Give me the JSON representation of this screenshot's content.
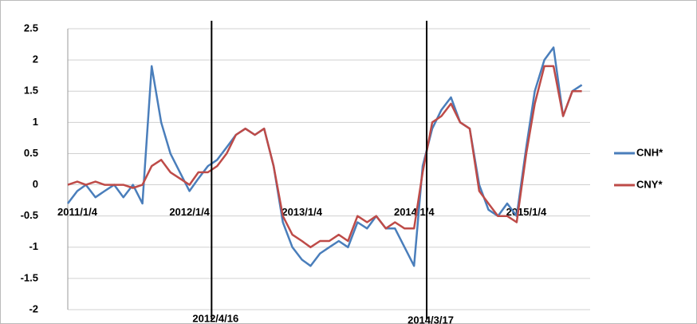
{
  "chart_data": {
    "type": "line",
    "x": [
      "2011/1/4",
      "2011/2/4",
      "2011/3/4",
      "2011/4/4",
      "2011/5/4",
      "2011/6/4",
      "2011/7/4",
      "2011/8/4",
      "2011/9/4",
      "2011/10/4",
      "2011/11/4",
      "2011/12/4",
      "2012/1/4",
      "2012/2/4",
      "2012/3/4",
      "2012/4/4",
      "2012/5/4",
      "2012/6/4",
      "2012/7/4",
      "2012/8/4",
      "2012/9/4",
      "2012/10/4",
      "2012/11/4",
      "2012/12/4",
      "2013/1/4",
      "2013/2/4",
      "2013/3/4",
      "2013/4/4",
      "2013/5/4",
      "2013/6/4",
      "2013/7/4",
      "2013/8/4",
      "2013/9/4",
      "2013/10/4",
      "2013/11/4",
      "2013/12/4",
      "2014/1/4",
      "2014/2/4",
      "2014/3/4",
      "2014/4/4",
      "2014/5/4",
      "2014/6/4",
      "2014/7/4",
      "2014/8/4",
      "2014/9/4",
      "2014/10/4",
      "2014/11/4",
      "2014/12/4",
      "2015/1/4",
      "2015/2/4",
      "2015/3/4",
      "2015/4/4",
      "2015/5/4",
      "2015/6/4",
      "2015/7/4",
      "2015/8/4"
    ],
    "series": [
      {
        "name": "CNH*",
        "color": "#4a7ebb",
        "values": [
          -0.3,
          -0.1,
          0.0,
          -0.2,
          -0.1,
          0.0,
          -0.2,
          0.0,
          -0.3,
          1.9,
          1.0,
          0.5,
          0.2,
          -0.1,
          0.1,
          0.3,
          0.4,
          0.6,
          0.8,
          0.9,
          0.8,
          0.9,
          0.3,
          -0.6,
          -1.0,
          -1.2,
          -1.3,
          -1.1,
          -1.0,
          -0.9,
          -1.0,
          -0.6,
          -0.7,
          -0.5,
          -0.7,
          -0.7,
          -1.0,
          -1.3,
          0.3,
          0.9,
          1.2,
          1.4,
          1.0,
          0.9,
          0.0,
          -0.4,
          -0.5,
          -0.3,
          -0.5,
          0.6,
          1.5,
          2.0,
          2.2,
          1.1,
          1.5,
          1.6
        ]
      },
      {
        "name": "CNY*",
        "color": "#be4b48",
        "values": [
          0.0,
          0.05,
          0.0,
          0.05,
          0.0,
          0.0,
          0.0,
          -0.05,
          0.0,
          0.3,
          0.4,
          0.2,
          0.1,
          0.0,
          0.2,
          0.2,
          0.3,
          0.5,
          0.8,
          0.9,
          0.8,
          0.9,
          0.3,
          -0.5,
          -0.8,
          -0.9,
          -1.0,
          -0.9,
          -0.9,
          -0.8,
          -0.9,
          -0.5,
          -0.6,
          -0.5,
          -0.7,
          -0.6,
          -0.7,
          -0.7,
          0.2,
          1.0,
          1.1,
          1.3,
          1.0,
          0.9,
          -0.1,
          -0.3,
          -0.5,
          -0.5,
          -0.6,
          0.5,
          1.3,
          1.9,
          1.9,
          1.1,
          1.5,
          1.5
        ]
      }
    ],
    "xlim": [
      "2011/1/4",
      "2015/8/31"
    ],
    "xticks": [
      "2011/1/4",
      "2012/1/4",
      "2013/1/4",
      "2014/1/4",
      "2015/1/4"
    ],
    "ylim": [
      -2,
      2.5
    ],
    "yticks": [
      -2,
      -1.5,
      -1,
      -0.5,
      0,
      0.5,
      1,
      1.5,
      2,
      2.5
    ],
    "vlines": [
      "2012/4/16",
      "2014/3/17"
    ],
    "grid": true,
    "legend": "right"
  }
}
